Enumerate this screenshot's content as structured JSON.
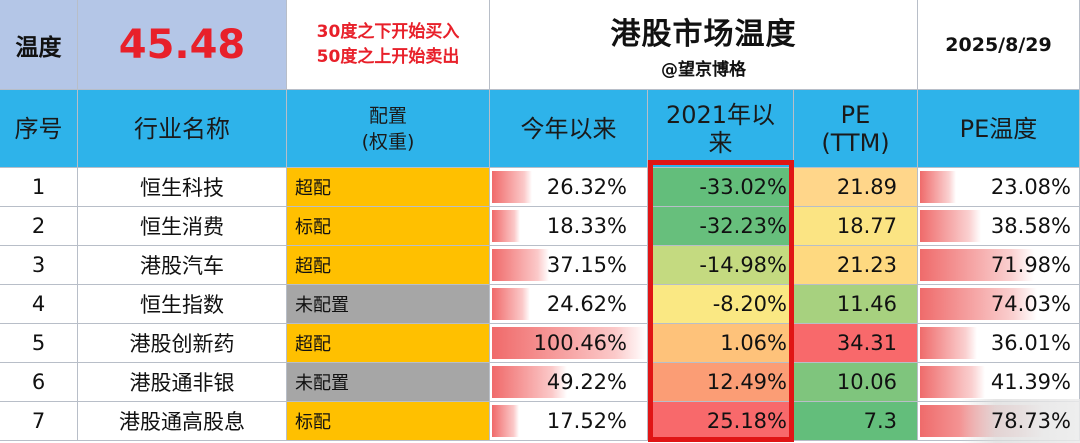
{
  "header": {
    "temp_label": "温度",
    "temp_value": "45.48",
    "rule_line1": "30度之下开始买入",
    "rule_line2": "50度之上开始卖出",
    "title": "港股市场温度",
    "author": "@望京博格",
    "date": "2025/8/29"
  },
  "columns": {
    "idx": "序号",
    "name": "行业名称",
    "alloc_line1": "配置",
    "alloc_line2": "(权重)",
    "ytd": "今年以来",
    "since_line1": "2021年以",
    "since_line2": "来",
    "pe_line1": "PE",
    "pe_line2": "(TTM)",
    "pe_temp": "PE温度"
  },
  "rows": [
    {
      "idx": "1",
      "name": "恒生科技",
      "alloc": "超配",
      "ytd": "26.32%",
      "ytd_pct": 26.32,
      "since": "-33.02%",
      "pe": "21.89",
      "pe_temp": "23.08%",
      "pe_temp_pct": 23.08,
      "since_color": "#63be7b",
      "pe_color": "#ffd68a"
    },
    {
      "idx": "2",
      "name": "恒生消费",
      "alloc": "标配",
      "ytd": "18.33%",
      "ytd_pct": 18.33,
      "since": "-32.23%",
      "pe": "18.77",
      "pe_temp": "38.58%",
      "pe_temp_pct": 38.58,
      "since_color": "#67bf7c",
      "pe_color": "#fbe483"
    },
    {
      "idx": "3",
      "name": "港股汽车",
      "alloc": "超配",
      "ytd": "37.15%",
      "ytd_pct": 37.15,
      "since": "-14.98%",
      "pe": "21.23",
      "pe_temp": "71.98%",
      "pe_temp_pct": 71.98,
      "since_color": "#c4da80",
      "pe_color": "#fed980"
    },
    {
      "idx": "4",
      "name": "恒生指数",
      "alloc": "未配置",
      "ytd": "24.62%",
      "ytd_pct": 24.62,
      "since": "-8.20%",
      "pe": "11.46",
      "pe_temp": "74.03%",
      "pe_temp_pct": 74.03,
      "since_color": "#fae883",
      "pe_color": "#a7d17f"
    },
    {
      "idx": "5",
      "name": "港股创新药",
      "alloc": "超配",
      "ytd": "100.46%",
      "ytd_pct": 100.46,
      "since": "1.06%",
      "pe": "34.31",
      "pe_temp": "36.01%",
      "pe_temp_pct": 36.01,
      "since_color": "#fec27a",
      "pe_color": "#f8696b"
    },
    {
      "idx": "6",
      "name": "港股通非银",
      "alloc": "未配置",
      "ytd": "49.22%",
      "ytd_pct": 49.22,
      "since": "12.49%",
      "pe": "10.06",
      "pe_temp": "41.39%",
      "pe_temp_pct": 41.39,
      "since_color": "#fb9d75",
      "pe_color": "#7fc57d"
    },
    {
      "idx": "7",
      "name": "港股通高股息",
      "alloc": "标配",
      "ytd": "17.52%",
      "ytd_pct": 17.52,
      "since": "25.18%",
      "pe": "7.3",
      "pe_temp": "78.73%",
      "pe_temp_pct": 78.73,
      "since_color": "#f8696b",
      "pe_color": "#63be7b"
    }
  ],
  "colors": {
    "header_blue": "#2eb3ea",
    "top_blue": "#b4c6e7",
    "accent_red": "#e8202a",
    "alloc_gold": "#ffc000",
    "alloc_gray": "#a6a6a6",
    "highlight_box": "#e01515"
  }
}
